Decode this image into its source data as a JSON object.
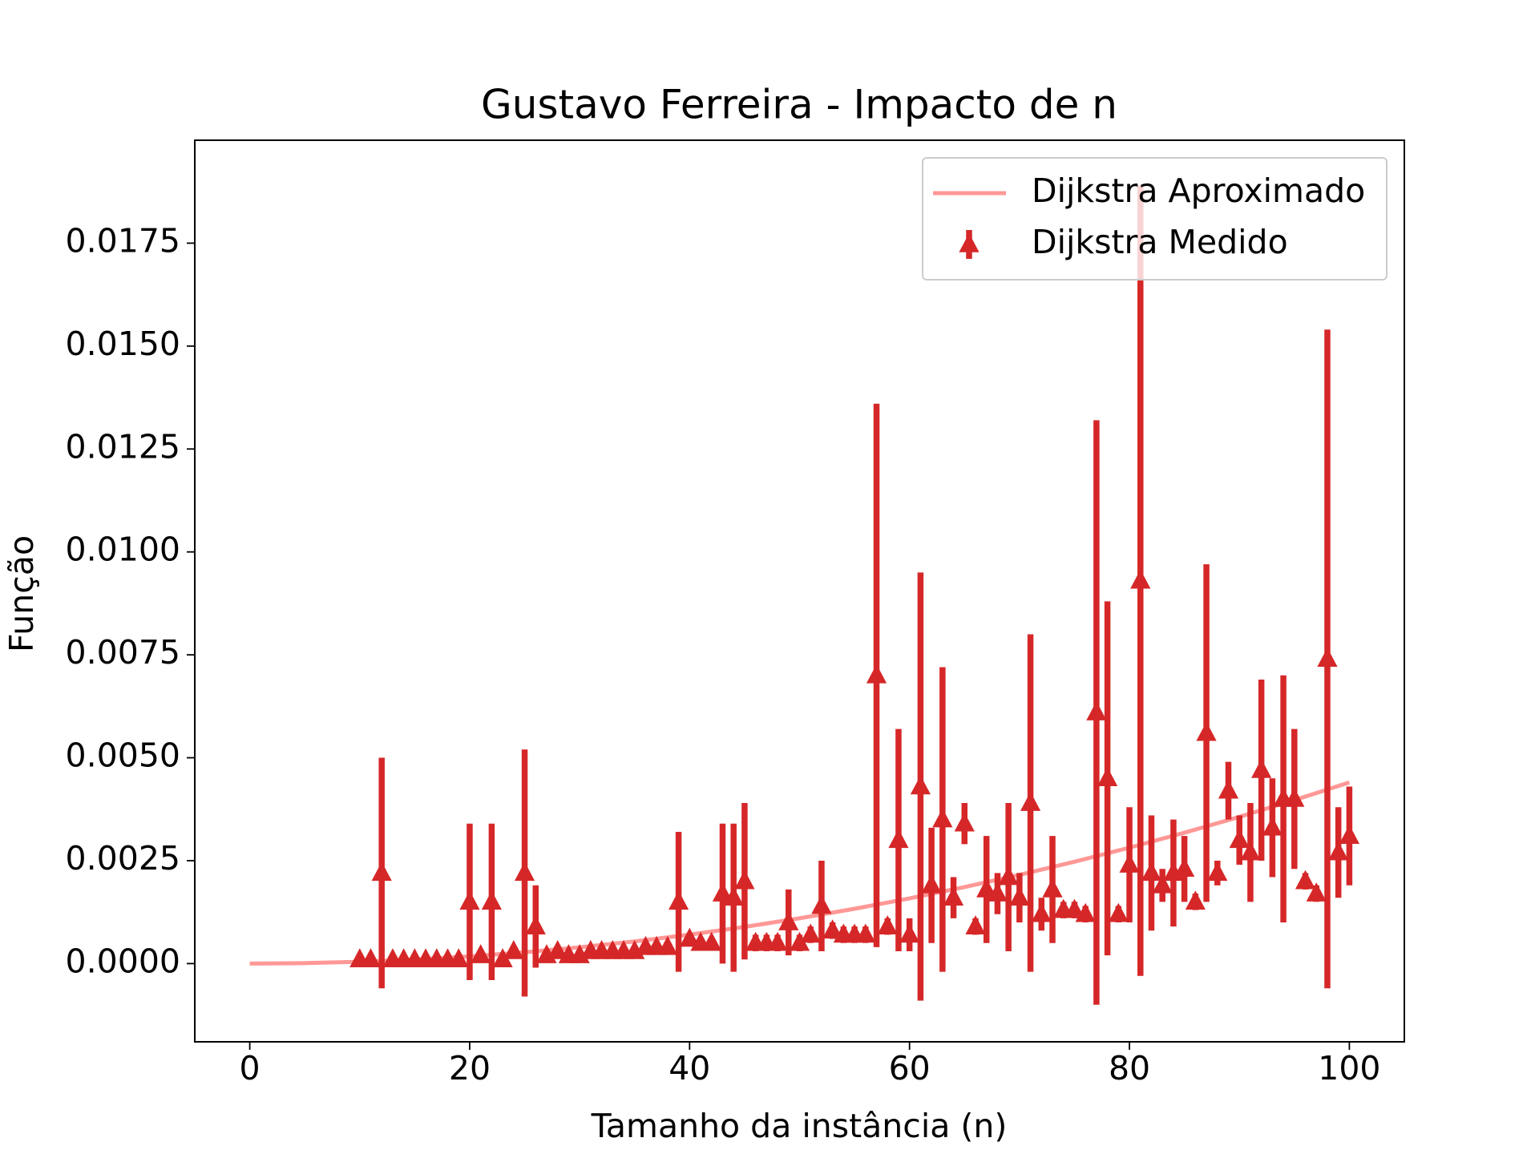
{
  "chart_data": {
    "type": "errorbar",
    "title": "Gustavo Ferreira - Impacto de n",
    "xlabel": "Tamanho da instância (n)",
    "ylabel": "Função",
    "xlim": [
      -5,
      105
    ],
    "ylim": [
      -0.0019,
      0.02
    ],
    "xticks": [
      0,
      20,
      40,
      60,
      80,
      100
    ],
    "yticks": [
      {
        "value": 0,
        "label": "0.0000"
      },
      0.0025,
      {
        "value": 0.005,
        "label": "0.0050"
      },
      0.0075,
      {
        "value": 0.01,
        "label": "0.0100"
      },
      0.0125,
      {
        "value": 0.015,
        "label": "0.0150"
      },
      0.0175
    ],
    "legend": "upper right",
    "grid": false,
    "series": [
      {
        "name": "Dijkstra Aproximado",
        "type": "line",
        "color": "#ff9896",
        "x": [
          0,
          5,
          10,
          15,
          20,
          25,
          30,
          35,
          40,
          45,
          50,
          55,
          60,
          65,
          70,
          75,
          80,
          85,
          90,
          95,
          100
        ],
        "values": [
          0,
          1.1e-05,
          4.4e-05,
          9.9e-05,
          0.000176,
          0.000275,
          0.000396,
          0.000539,
          0.000704,
          0.000891,
          0.0011,
          0.001331,
          0.001584,
          0.001859,
          0.002156,
          0.002475,
          0.002816,
          0.003179,
          0.003564,
          0.003971,
          0.0044
        ]
      },
      {
        "name": "Dijkstra Medido",
        "type": "errorbar",
        "color": "#d62728",
        "x": [
          10,
          11,
          12,
          13,
          14,
          15,
          16,
          17,
          18,
          19,
          20,
          21,
          22,
          23,
          24,
          25,
          26,
          27,
          28,
          29,
          30,
          31,
          32,
          33,
          34,
          35,
          36,
          37,
          38,
          39,
          40,
          41,
          42,
          43,
          44,
          45,
          46,
          47,
          48,
          49,
          50,
          51,
          52,
          53,
          54,
          55,
          56,
          57,
          58,
          59,
          60,
          61,
          62,
          63,
          64,
          65,
          66,
          67,
          68,
          69,
          70,
          71,
          72,
          73,
          74,
          75,
          76,
          77,
          78,
          79,
          80,
          81,
          82,
          83,
          84,
          85,
          86,
          87,
          88,
          89,
          90,
          91,
          92,
          93,
          94,
          95,
          96,
          97,
          98,
          99,
          100
        ],
        "values": [
          0.0001,
          0.0001,
          0.0022,
          0.0001,
          0.0001,
          0.0001,
          0.0001,
          0.0001,
          0.0001,
          0.0001,
          0.0015,
          0.0002,
          0.0015,
          0.0001,
          0.0003,
          0.0022,
          0.0009,
          0.0002,
          0.0003,
          0.0002,
          0.0002,
          0.0003,
          0.0003,
          0.0003,
          0.0003,
          0.0003,
          0.0004,
          0.0004,
          0.0004,
          0.0015,
          0.0006,
          0.0005,
          0.0005,
          0.0017,
          0.0016,
          0.002,
          0.0005,
          0.0005,
          0.0005,
          0.001,
          0.0005,
          0.0007,
          0.0014,
          0.0008,
          0.0007,
          0.0007,
          0.0007,
          0.007,
          0.0009,
          0.003,
          0.0007,
          0.0043,
          0.0019,
          0.0035,
          0.0016,
          0.0034,
          0.0009,
          0.0018,
          0.0017,
          0.0021,
          0.0016,
          0.0039,
          0.0012,
          0.0018,
          0.0013,
          0.0013,
          0.0012,
          0.0061,
          0.0045,
          0.0012,
          0.0024,
          0.0093,
          0.0022,
          0.0019,
          0.0022,
          0.0023,
          0.0015,
          0.0056,
          0.0022,
          0.0042,
          0.003,
          0.0027,
          0.0047,
          0.0033,
          0.004,
          0.004,
          0.002,
          0.0017,
          0.0074,
          0.0027,
          0.0031
        ],
        "errors": [
          0.0001,
          0.0001,
          0.0028,
          0.0001,
          0.0001,
          0.0001,
          0.0001,
          0.0001,
          0.0001,
          0.0001,
          0.0019,
          0.0001,
          0.0019,
          0.0001,
          0.0001,
          0.003,
          0.001,
          0.0001,
          0.0001,
          0.0001,
          0.0001,
          0.0001,
          0.0001,
          0.0001,
          0.0001,
          0.0001,
          0.0001,
          0.0001,
          0.0001,
          0.0017,
          0.0001,
          0.0001,
          0.0001,
          0.0017,
          0.0018,
          0.0019,
          0.0002,
          0.0002,
          0.0002,
          0.0008,
          0.0002,
          0.0002,
          0.0011,
          0.0002,
          0.0002,
          0.0002,
          0.0002,
          0.0066,
          0.0002,
          0.0027,
          0.0004,
          0.0052,
          0.0014,
          0.0037,
          0.0005,
          0.0005,
          0.0002,
          0.0013,
          0.0005,
          0.0018,
          0.0006,
          0.0041,
          0.0004,
          0.0013,
          0.0002,
          0.0002,
          0.0002,
          0.0071,
          0.0043,
          0.0002,
          0.0014,
          0.0096,
          0.0014,
          0.0004,
          0.0013,
          0.0008,
          0.0002,
          0.0041,
          0.0003,
          0.0007,
          0.0006,
          0.0012,
          0.0022,
          0.0012,
          0.003,
          0.0017,
          0.0002,
          0.0002,
          0.008,
          0.0011,
          0.0012
        ]
      }
    ]
  }
}
